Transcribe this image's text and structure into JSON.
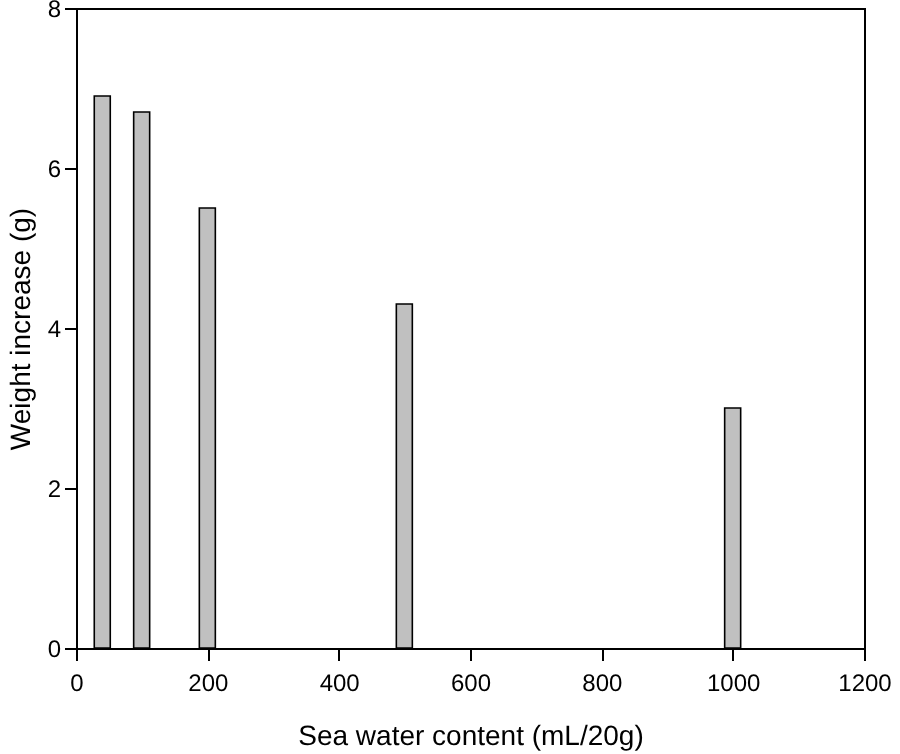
{
  "chart_data": {
    "type": "bar",
    "xlabel": "Sea water content (mL/20g)",
    "ylabel": "Weight increase (g)",
    "x": [
      40,
      100,
      200,
      500,
      1000
    ],
    "values": [
      6.9,
      6.7,
      5.5,
      4.3,
      3.0
    ],
    "color": "#c0c0c0",
    "xlim": [
      0,
      1200
    ],
    "xticks": [
      0,
      200,
      400,
      600,
      800,
      1000,
      1200
    ],
    "ylim": [
      0,
      8
    ],
    "yticks": [
      0,
      2,
      4,
      6,
      8
    ],
    "grid": false
  }
}
